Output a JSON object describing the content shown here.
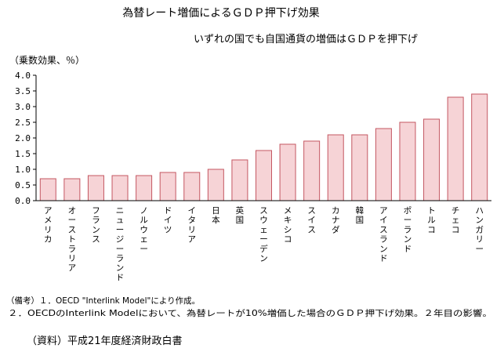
{
  "chart_data": {
    "type": "bar",
    "title": "為替レート増価によるＧＤＰ押下げ効果",
    "subtitle": "いずれの国でも自国通貨の増価はＧＤＰを押下げ",
    "ylabel": "（乗数効果、％）",
    "xlabel": "",
    "ylim": [
      0,
      4.0
    ],
    "yticks": [
      "4.0",
      "3.5",
      "3.0",
      "2.5",
      "2.0",
      "1.5",
      "1.0",
      "0.5",
      "0.0"
    ],
    "grid": false,
    "legend": "none",
    "bar_fill_color": "#f6d3d6",
    "bar_stroke_color": "#c45762",
    "categories": [
      "アメリカ",
      "オーストラリア",
      "フランス",
      "ニュージーランド",
      "ノルウェー",
      "ドイツ",
      "イタリア",
      "日本",
      "英国",
      "スウェーデン",
      "メキシコ",
      "スイス",
      "カナダ",
      "韓国",
      "アイスランド",
      "ポーランド",
      "トルコ",
      "チェコ",
      "ハンガリー"
    ],
    "values": [
      0.7,
      0.7,
      0.8,
      0.8,
      0.8,
      0.9,
      0.9,
      1.0,
      1.3,
      1.6,
      1.8,
      1.9,
      2.1,
      2.1,
      2.3,
      2.5,
      2.6,
      3.3,
      3.4
    ]
  },
  "notes": {
    "line1": "（備考）１．OECD \"Interlink Model\"により作成。",
    "line2": "２．OECDのInterlink Modelにおいて、為替レートが10%増価した場合のＧＤＰ押下げ効果。２年目の影響。"
  },
  "source": "（資料）平成21年度経済財政白書"
}
